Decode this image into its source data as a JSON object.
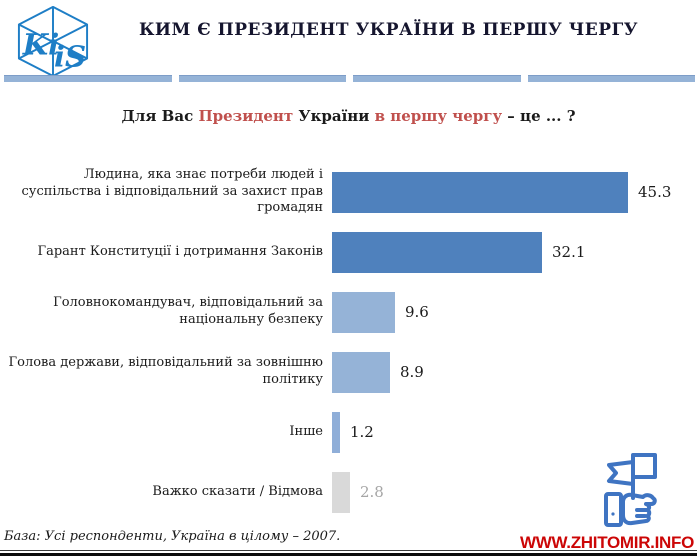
{
  "header": {
    "title": "КИМ Є ПРЕЗИДЕНТ УКРАЇНИ В ПЕРШУ ЧЕРГУ",
    "logo": {
      "letters_left": "Ki",
      "letters_right": "iS",
      "color": "#1e7ec6"
    }
  },
  "divider": {
    "segment_count": 4,
    "color": "#95b3d7"
  },
  "question": {
    "full_text": "Для Вас Президент України в першу чергу – це ... ?",
    "parts": [
      {
        "text": "Для Вас ",
        "color": "#1a1a1a"
      },
      {
        "text": "Президент ",
        "color": "#C0504D"
      },
      {
        "text": "України ",
        "color": "#1a1a1a"
      },
      {
        "text": "в першу чергу",
        "color": "#C0504D"
      },
      {
        "text": " – це ... ?",
        "color": "#1a1a1a"
      }
    ]
  },
  "chart_data": {
    "type": "bar",
    "orientation": "horizontal",
    "title": "Для Вас Президент України в першу чергу – це ... ?",
    "xlabel": "",
    "ylabel": "",
    "xlim": [
      0,
      50
    ],
    "grid": false,
    "legend": false,
    "categories": [
      "Людина, яка знає потреби людей і суспільства і відповідальний за захист прав громадян",
      "Гарант Конституції і дотримання Законів",
      "Головнокомандувач, відповідальний за національну безпеку",
      "Голова держави, відповідальний за зовнішню політику",
      "Інше",
      "Важко сказати / Відмова"
    ],
    "values": [
      45.3,
      32.1,
      9.6,
      8.9,
      1.2,
      2.8
    ],
    "rows": [
      {
        "label": "Людина, яка знає потреби людей і суспільства і відповідальний за захист прав громадян",
        "value": "45.3",
        "bar_color": "#4F81BD",
        "value_color": "#1a1a1a"
      },
      {
        "label": "Гарант Конституції і дотримання Законів",
        "value": "32.1",
        "bar_color": "#4F81BD",
        "value_color": "#1a1a1a"
      },
      {
        "label": "Головнокомандувач, відповідальний за національну безпеку",
        "value": "9.6",
        "bar_color": "#95B3D7",
        "value_color": "#1a1a1a"
      },
      {
        "label": "Голова держави, відповідальний за зовнішню політику",
        "value": "8.9",
        "bar_color": "#95B3D7",
        "value_color": "#1a1a1a"
      },
      {
        "label": "Інше",
        "value": "1.2",
        "bar_color": "#8FAED8",
        "value_color": "#1a1a1a"
      },
      {
        "label": "Важко сказати / Відмова",
        "value": "2.8",
        "bar_color": "#D9D9D9",
        "value_color": "#A6A6A6"
      }
    ]
  },
  "footer": {
    "base_note": "База: Усі респонденти, Україна в цілому – 2007.",
    "website": "WWW.ZHITOMIR.INFO",
    "website_color": "#CC0606",
    "flag_hand_icon_color": "#3F74C2"
  }
}
